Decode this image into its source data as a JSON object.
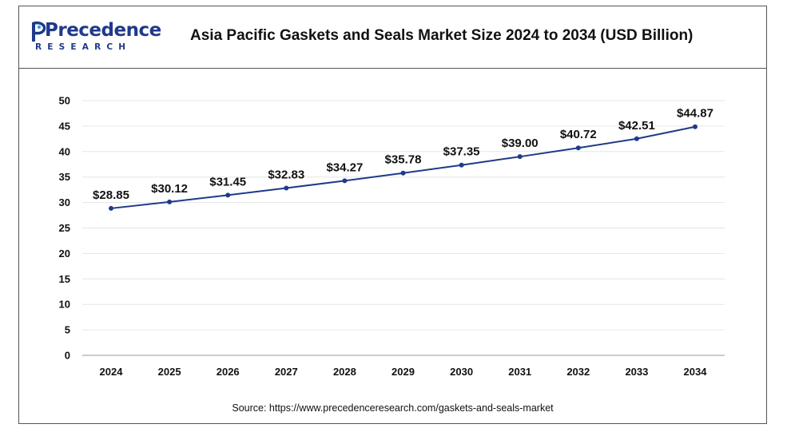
{
  "header": {
    "logo_main": "Precedence",
    "logo_sub": "RESEARCH",
    "title": "Asia Pacific Gaskets and Seals Market Size 2024 to 2034 (USD Billion)"
  },
  "footer": {
    "source": "Source: https://www.precedenceresearch.com/gaskets-and-seals-market"
  },
  "colors": {
    "line": "#1f3a8a",
    "grid": "#e6e6e6",
    "logo": "#1f3a8a"
  },
  "chart_data": {
    "type": "line",
    "title": "Asia Pacific Gaskets and Seals Market Size 2024 to 2034 (USD Billion)",
    "xlabel": "",
    "ylabel": "",
    "categories": [
      "2024",
      "2025",
      "2026",
      "2027",
      "2028",
      "2029",
      "2030",
      "2031",
      "2032",
      "2033",
      "2034"
    ],
    "values": [
      28.85,
      30.12,
      31.45,
      32.83,
      34.27,
      35.78,
      37.35,
      39.0,
      40.72,
      42.51,
      44.87
    ],
    "data_labels": [
      "$28.85",
      "$30.12",
      "$31.45",
      "$32.83",
      "$34.27",
      "$35.78",
      "$37.35",
      "$39.00",
      "$40.72",
      "$42.51",
      "$44.87"
    ],
    "ylim": [
      0,
      50
    ],
    "yticks": [
      0,
      5,
      10,
      15,
      20,
      25,
      30,
      35,
      40,
      45,
      50
    ],
    "grid": true,
    "legend": "none"
  }
}
